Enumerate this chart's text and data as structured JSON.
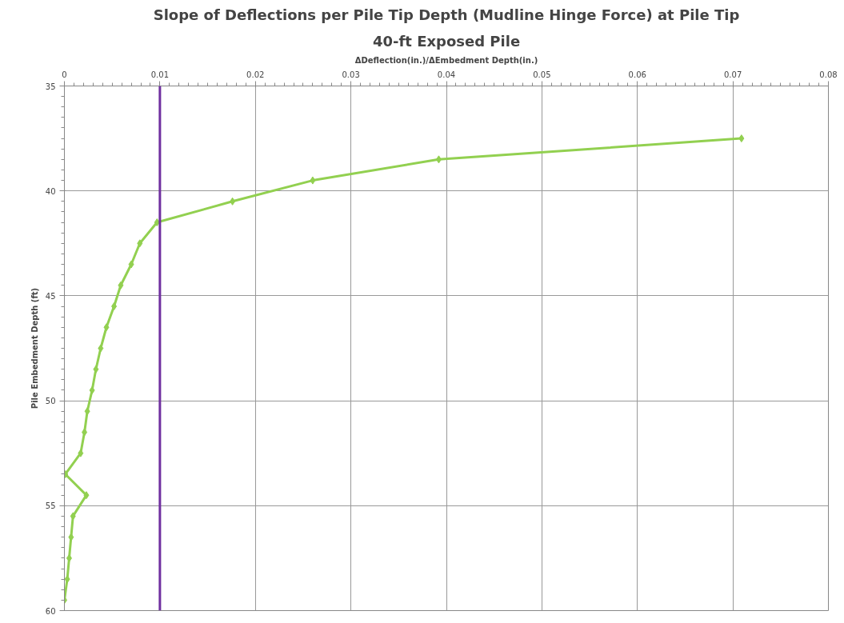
{
  "chart_data": {
    "type": "line",
    "title": "Slope of Deflections per Pile Tip Depth (Mudline Hinge Force) at Pile Tip",
    "subtitle": "40-ft Exposed Pile",
    "xlabel": "ΔDeflection(in.)/ΔEmbedment Depth(in.)",
    "ylabel": "Pile Embedment Depth (ft)",
    "series": [
      {
        "color": "#92d050",
        "x": [
          0.0709,
          0.0392,
          0.026,
          0.0176,
          0.0097,
          0.0079,
          0.007,
          0.0059,
          0.0052,
          0.0044,
          0.0038,
          0.0033,
          0.0029,
          0.0024,
          0.0021,
          0.0017,
          0.0001,
          0.0023,
          0.0009,
          0.0007,
          0.0005,
          0.0003,
          0.0
        ],
        "values": [
          37.5,
          38.5,
          39.5,
          40.5,
          41.5,
          42.5,
          43.5,
          44.5,
          45.5,
          46.5,
          47.5,
          48.5,
          49.5,
          50.5,
          51.5,
          52.5,
          53.5,
          54.5,
          55.5,
          56.5,
          57.5,
          58.5,
          59.5
        ]
      }
    ],
    "xlim": [
      0,
      0.08
    ],
    "xticks": [
      0,
      0.01,
      0.02,
      0.03,
      0.04,
      0.05,
      0.06,
      0.07,
      0.08
    ],
    "ylim": [
      60,
      35
    ],
    "yticks": [
      35,
      40,
      45,
      50,
      55,
      60
    ],
    "ref_lines": [
      {
        "axis": "x",
        "value": 0.01,
        "color": "#7030a0"
      }
    ],
    "grid": true,
    "marker": "diamond",
    "line_style": "solid"
  }
}
